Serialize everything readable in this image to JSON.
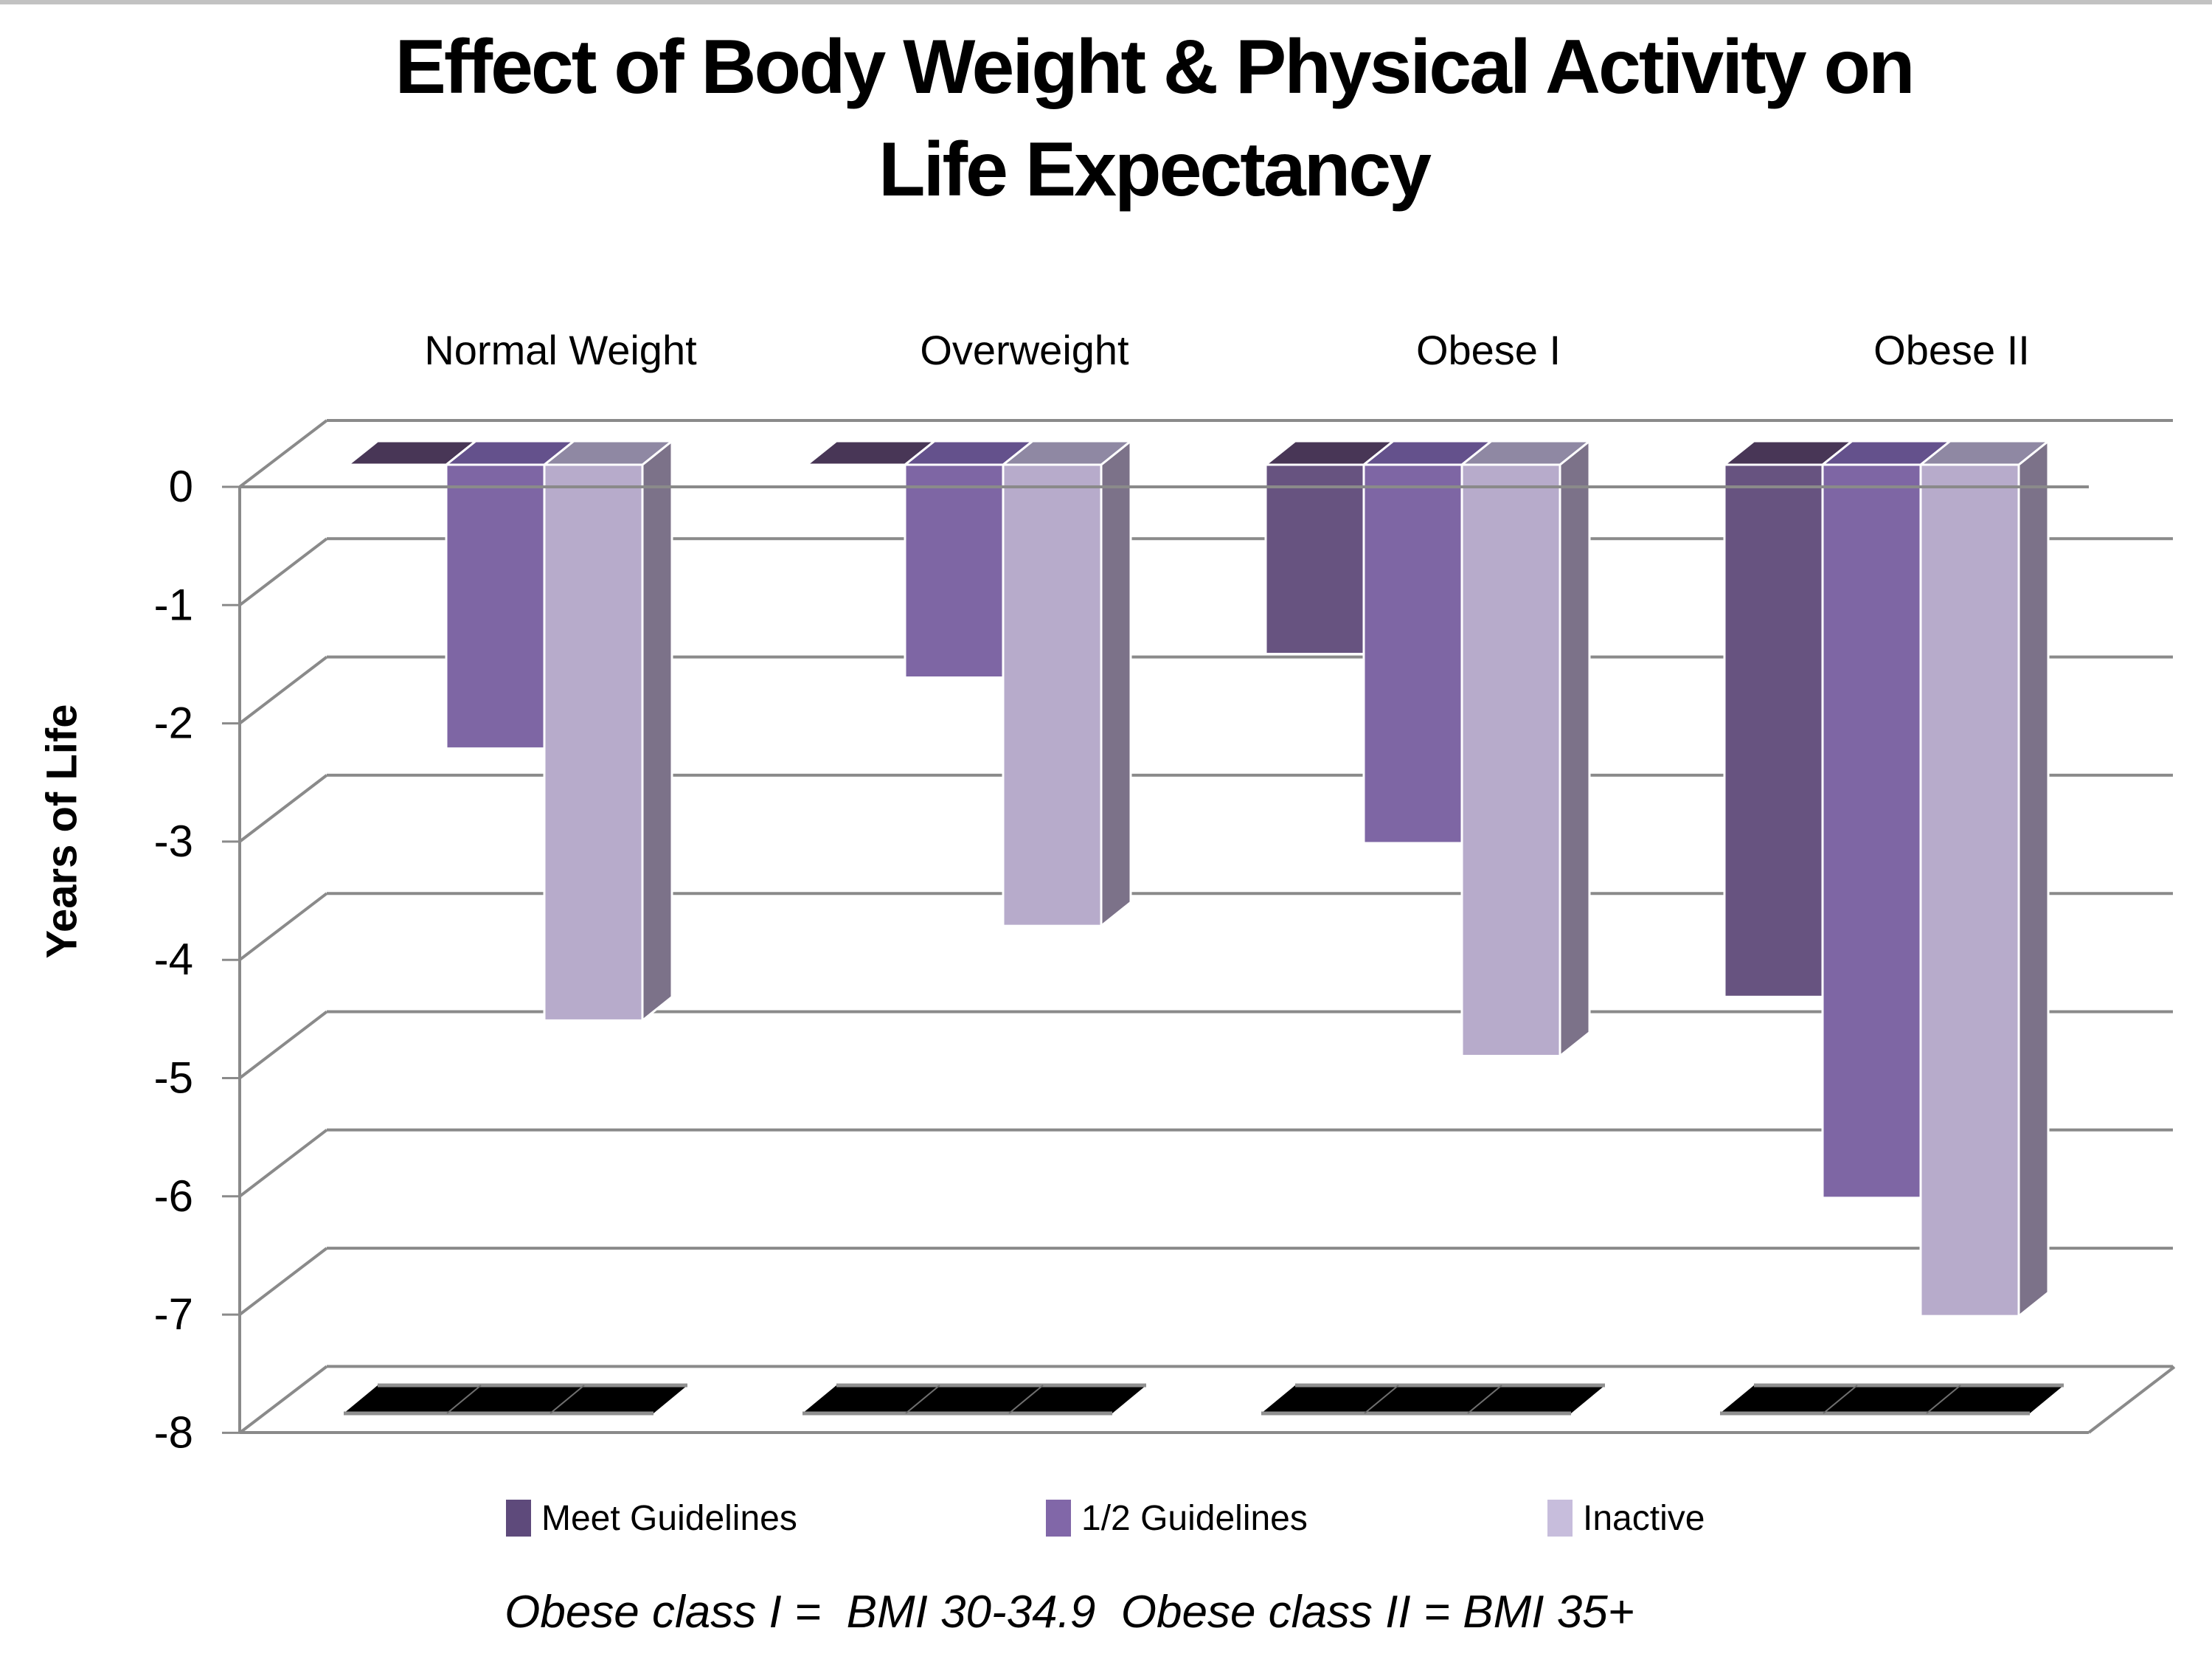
{
  "chart_data": {
    "type": "bar",
    "projection": "3d-clustered-column",
    "title": "Effect of Body Weight & Physical Activity on Life Expectancy",
    "title_lines": [
      "Effect of Body Weight & Physical Activity on",
      "Life Expectancy"
    ],
    "ylabel": "Years of Life",
    "xlabel": "",
    "ylim": [
      -8,
      0
    ],
    "y_ticks": [
      0,
      -1,
      -2,
      -3,
      -4,
      -5,
      -6,
      -7,
      -8
    ],
    "grid": true,
    "legend_position": "bottom",
    "categories": [
      "Normal Weight",
      "Overweight",
      "Obese I",
      "Obese II"
    ],
    "series": [
      {
        "name": "Meet Guidelines",
        "values": [
          0,
          0,
          -1.6,
          -4.5
        ],
        "color_front": "#675380",
        "color_top": "#483656",
        "color_side": "#3E2F4C",
        "color_legend": "#5E4A7B"
      },
      {
        "name": "1/2 Guidelines",
        "values": [
          -2.4,
          -1.8,
          -3.2,
          -6.2
        ],
        "color_front": "#7E66A4",
        "color_top": "#64518C",
        "color_side": "#564579",
        "color_legend": "#8167A8"
      },
      {
        "name": "Inactive",
        "values": [
          -4.7,
          -3.9,
          -5.0,
          -7.2
        ],
        "color_front": "#B7ABCB",
        "color_top": "#8F88A3",
        "color_side": "#7C7289",
        "color_legend": "#C7BDDC"
      }
    ],
    "footnote": "Obese class I =  BMI 30-34.9  Obese class II = BMI 35+",
    "colors": {
      "gridline": "#8A8A8A",
      "axis": "#8A8A8A",
      "bar_outline": "#FFFFFF",
      "floor_shadow": "#000000",
      "floor_shadow_edge": "#8F8F8F",
      "top_page_border": "#C2C2C2",
      "text": "#000000",
      "background": "#FFFFFF"
    }
  }
}
